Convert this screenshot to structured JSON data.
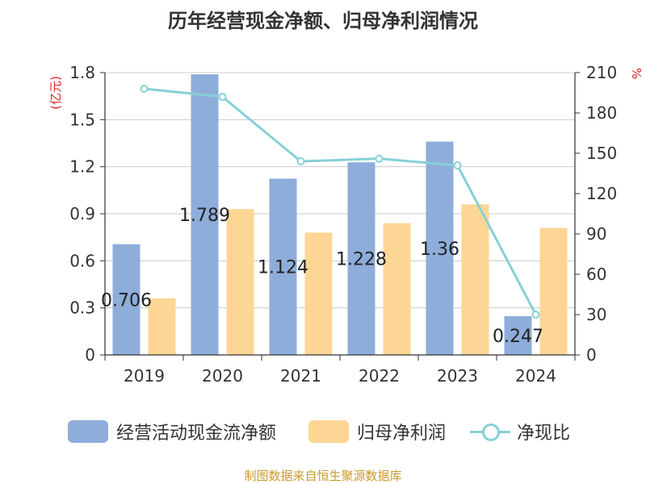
{
  "chart_data": {
    "type": "bar",
    "title": "历年经营现金净额、归母净利润情况",
    "categories": [
      "2019",
      "2020",
      "2021",
      "2022",
      "2023",
      "2024"
    ],
    "left_axis": {
      "unit_label": "(亿元)",
      "ylim": [
        0,
        1.8
      ],
      "ticks": [
        "0",
        "0.3",
        "0.6",
        "0.9",
        "1.2",
        "1.5",
        "1.8"
      ]
    },
    "right_axis": {
      "unit_label": "%",
      "ylim": [
        0,
        210
      ],
      "ticks": [
        "0",
        "30",
        "60",
        "90",
        "120",
        "150",
        "180",
        "210"
      ]
    },
    "series": [
      {
        "name": "经营活动现金流净额",
        "type": "bar",
        "axis": "left",
        "color": "#8eadda",
        "values": [
          0.706,
          1.789,
          1.124,
          1.228,
          1.36,
          0.247
        ],
        "labels": [
          "0.706",
          "1.789",
          "1.124",
          "1.228",
          "1.36",
          "0.247"
        ]
      },
      {
        "name": "归母净利润",
        "type": "bar",
        "axis": "left",
        "color": "#fdd695",
        "values": [
          0.36,
          0.93,
          0.78,
          0.84,
          0.96,
          0.81
        ]
      },
      {
        "name": "净现比",
        "type": "line",
        "axis": "right",
        "color": "#86d0d6",
        "values": [
          198,
          192,
          144,
          146,
          141,
          30
        ]
      }
    ],
    "grid": true,
    "legend_position": "bottom"
  },
  "source": "制图数据来自恒生聚源数据库"
}
